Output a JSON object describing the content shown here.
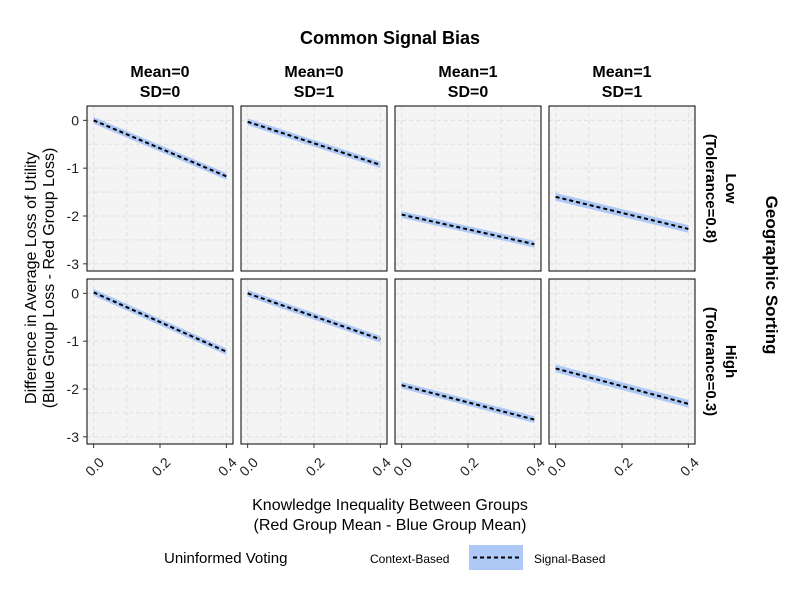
{
  "chart_data": {
    "type": "line",
    "title": "Common Signal Bias",
    "xlabel_line1": "Knowledge Inequality Between Groups",
    "xlabel_line2": "(Red Group Mean - Blue Group Mean)",
    "ylabel_line1": "Difference in Average Loss of Utility",
    "ylabel_line2": "(Blue Group Loss - Red Group Loss)",
    "right_title": "Geographic Sorting",
    "col_strips": [
      {
        "line1": "Mean=0",
        "line2": "SD=0"
      },
      {
        "line1": "Mean=0",
        "line2": "SD=1"
      },
      {
        "line1": "Mean=1",
        "line2": "SD=0"
      },
      {
        "line1": "Mean=1",
        "line2": "SD=1"
      }
    ],
    "row_strips": [
      {
        "line1": "Low",
        "line2": "(Tolerance=0.8)"
      },
      {
        "line1": "High",
        "line2": "(Tolerance=0.3)"
      }
    ],
    "xlim": [
      -0.02,
      0.42
    ],
    "ylim": [
      -3.15,
      0.3
    ],
    "x_ticks": [
      0.0,
      0.2,
      0.4
    ],
    "x_tick_labels": [
      "0.0",
      "0.2",
      "0.4"
    ],
    "y_ticks": [
      0,
      -1,
      -2,
      -3
    ],
    "y_tick_labels": [
      "0",
      "-1",
      "-2",
      "-3"
    ],
    "grid": true,
    "colors": {
      "ribbon": "#aec9f5",
      "line": "#000000",
      "panel_bg": "#f4f4f4",
      "grid": "#e0e0e0"
    },
    "legend": {
      "title": "Uninformed Voting",
      "entries": [
        "Context-Based",
        "Signal-Based"
      ],
      "position": "bottom"
    },
    "panels": [
      {
        "row": 0,
        "col": 0,
        "x": [
          0.0,
          0.4
        ],
        "y": [
          0.0,
          -1.17
        ],
        "band": 0.07
      },
      {
        "row": 0,
        "col": 1,
        "x": [
          0.0,
          0.4
        ],
        "y": [
          -0.03,
          -0.93
        ],
        "band": 0.07
      },
      {
        "row": 0,
        "col": 2,
        "x": [
          0.0,
          0.4
        ],
        "y": [
          -1.97,
          -2.59
        ],
        "band": 0.07
      },
      {
        "row": 0,
        "col": 3,
        "x": [
          0.0,
          0.4
        ],
        "y": [
          -1.6,
          -2.27
        ],
        "band": 0.08
      },
      {
        "row": 1,
        "col": 0,
        "x": [
          0.0,
          0.4
        ],
        "y": [
          0.02,
          -1.22
        ],
        "band": 0.07
      },
      {
        "row": 1,
        "col": 1,
        "x": [
          0.0,
          0.4
        ],
        "y": [
          0.0,
          -0.96
        ],
        "band": 0.07
      },
      {
        "row": 1,
        "col": 2,
        "x": [
          0.0,
          0.4
        ],
        "y": [
          -1.92,
          -2.64
        ],
        "band": 0.07
      },
      {
        "row": 1,
        "col": 3,
        "x": [
          0.0,
          0.4
        ],
        "y": [
          -1.57,
          -2.31
        ],
        "band": 0.08
      }
    ]
  }
}
